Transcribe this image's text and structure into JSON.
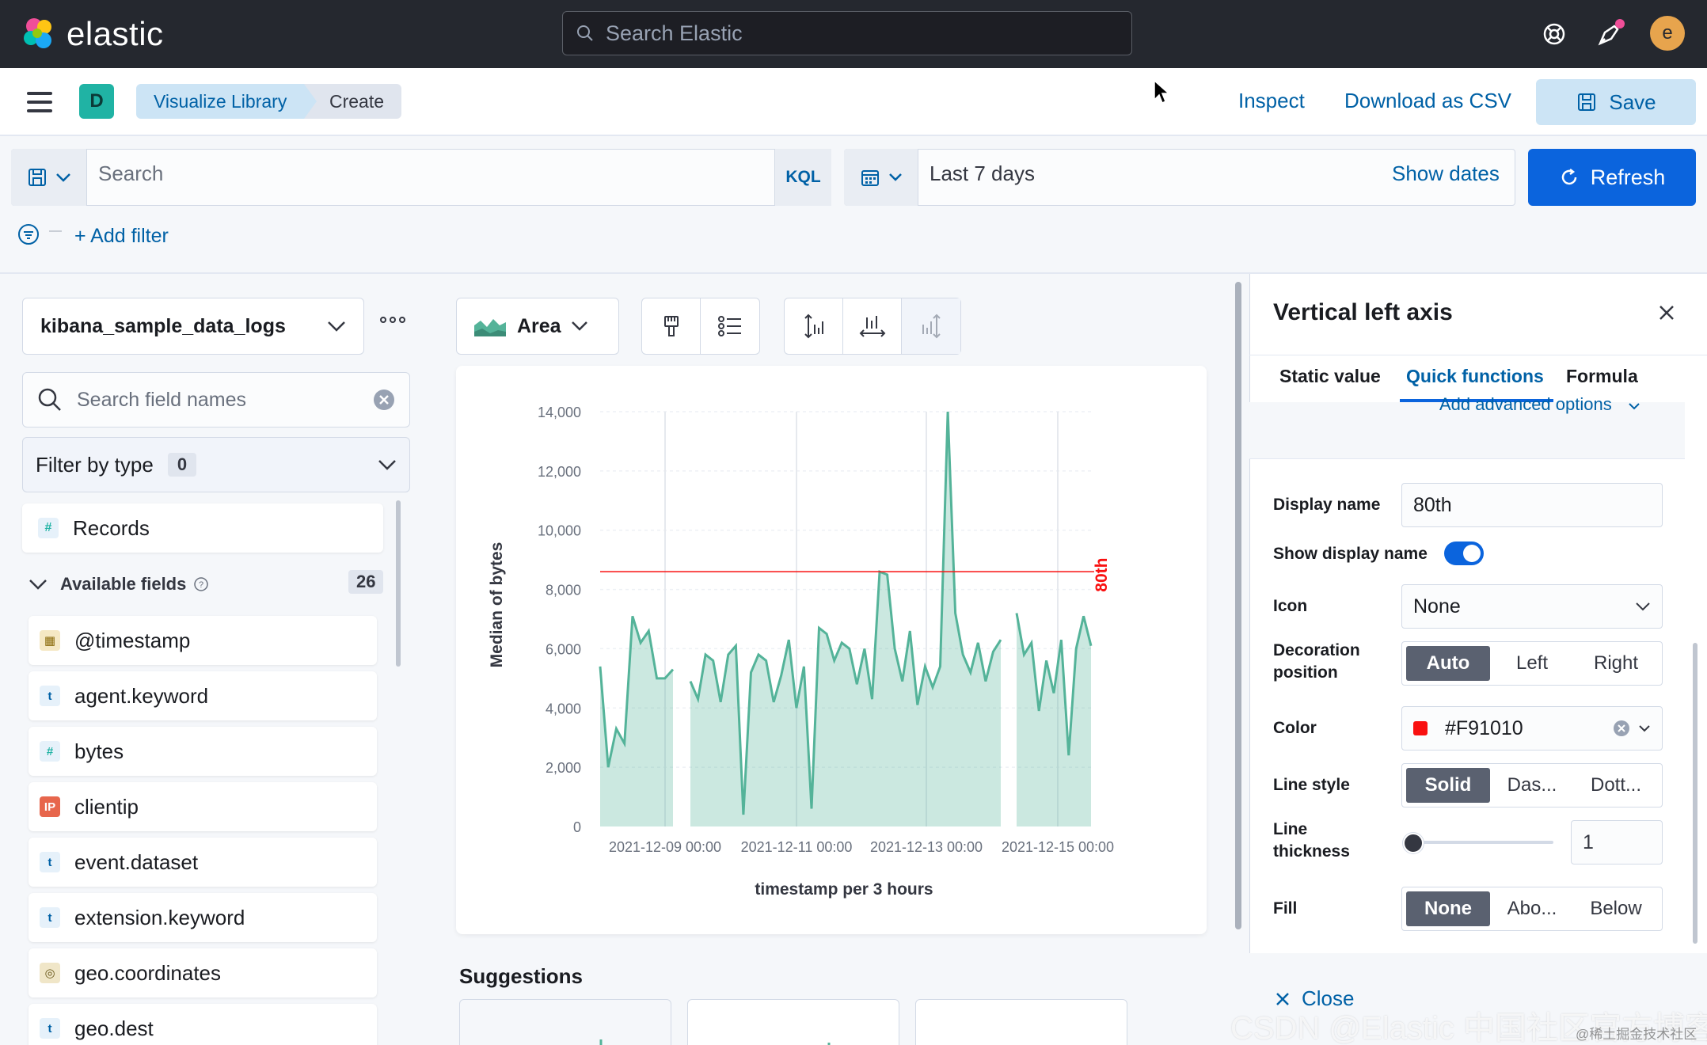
{
  "topbar": {
    "brand": "elastic",
    "search_placeholder": "Search Elastic",
    "avatar_letter": "e"
  },
  "subbar": {
    "space_letter": "D",
    "breadcrumbs": [
      "Visualize Library",
      "Create"
    ],
    "inspect_label": "Inspect",
    "download_label": "Download as CSV",
    "save_label": "Save"
  },
  "query": {
    "placeholder": "Search",
    "language": "KQL",
    "date_range": "Last 7 days",
    "show_dates_label": "Show dates",
    "refresh_label": "Refresh",
    "add_filter_label": "+ Add filter"
  },
  "left": {
    "dataview": "kibana_sample_data_logs",
    "field_search_placeholder": "Search field names",
    "filter_by_type_label": "Filter by type",
    "filter_count": "0",
    "records_label": "Records",
    "available_label": "Available fields",
    "available_count": "26",
    "fields": [
      {
        "name": "@timestamp",
        "type": "date"
      },
      {
        "name": "agent.keyword",
        "type": "t"
      },
      {
        "name": "bytes",
        "type": "#"
      },
      {
        "name": "clientip",
        "type": "IP"
      },
      {
        "name": "event.dataset",
        "type": "t"
      },
      {
        "name": "extension.keyword",
        "type": "t"
      },
      {
        "name": "geo.coordinates",
        "type": "geo"
      },
      {
        "name": "geo.dest",
        "type": "t"
      }
    ]
  },
  "center": {
    "chart_type_label": "Area",
    "suggestions_label": "Suggestions"
  },
  "chart_data": {
    "type": "area",
    "ylabel": "Median of bytes",
    "xlabel": "timestamp per 3 hours",
    "ylim": [
      0,
      14000
    ],
    "y_ticks": [
      "0",
      "2,000",
      "4,000",
      "6,000",
      "8,000",
      "10,000",
      "12,000",
      "14,000"
    ],
    "x_ticks": [
      "2021-12-09 00:00",
      "2021-12-11 00:00",
      "2021-12-13 00:00",
      "2021-12-15 00:00"
    ],
    "reference_line": {
      "label": "80th",
      "value": 8600,
      "color": "#F91010"
    },
    "series_color": "#54b399",
    "segments": [
      [
        5400,
        2000,
        3300,
        2800,
        7100,
        6200,
        6600,
        5000,
        5000,
        5300
      ],
      [
        4900,
        4300,
        5800,
        5600,
        4200,
        5800,
        6100,
        400,
        5200,
        5800,
        5600,
        4200,
        5100,
        6300,
        4000,
        5400,
        600,
        6700,
        6500,
        5600,
        6200,
        6000,
        4800,
        6000,
        4300,
        8600,
        8500,
        6000,
        4900,
        6600,
        4100,
        5400,
        4700,
        5400,
        14000,
        7200,
        5800,
        5200,
        6200,
        4900,
        5900,
        6300
      ],
      [
        7200,
        5800,
        6200,
        3900,
        5600,
        4500,
        6300,
        2400,
        6000,
        7100,
        6100
      ]
    ]
  },
  "flyout": {
    "title": "Vertical left axis",
    "tabs": [
      "Static value",
      "Quick functions",
      "Formula"
    ],
    "advanced_label": "Add advanced options",
    "display_name_label": "Display name",
    "display_name_value": "80th",
    "show_display_name_label": "Show display name",
    "icon_label": "Icon",
    "icon_value": "None",
    "decoration_label_1": "Decoration",
    "decoration_label_2": "position",
    "decoration_options": [
      "Auto",
      "Left",
      "Right"
    ],
    "color_label": "Color",
    "color_value": "#F91010",
    "line_style_label": "Line style",
    "line_style_options": [
      "Solid",
      "Das...",
      "Dott..."
    ],
    "thickness_label_1": "Line",
    "thickness_label_2": "thickness",
    "thickness_value": "1",
    "fill_label": "Fill",
    "fill_options": [
      "None",
      "Abo...",
      "Below"
    ],
    "close_label": "Close"
  },
  "watermark": {
    "text": "CSDN @Elastic 中国社区官方博客",
    "sub": "@稀土掘金技术社区"
  }
}
